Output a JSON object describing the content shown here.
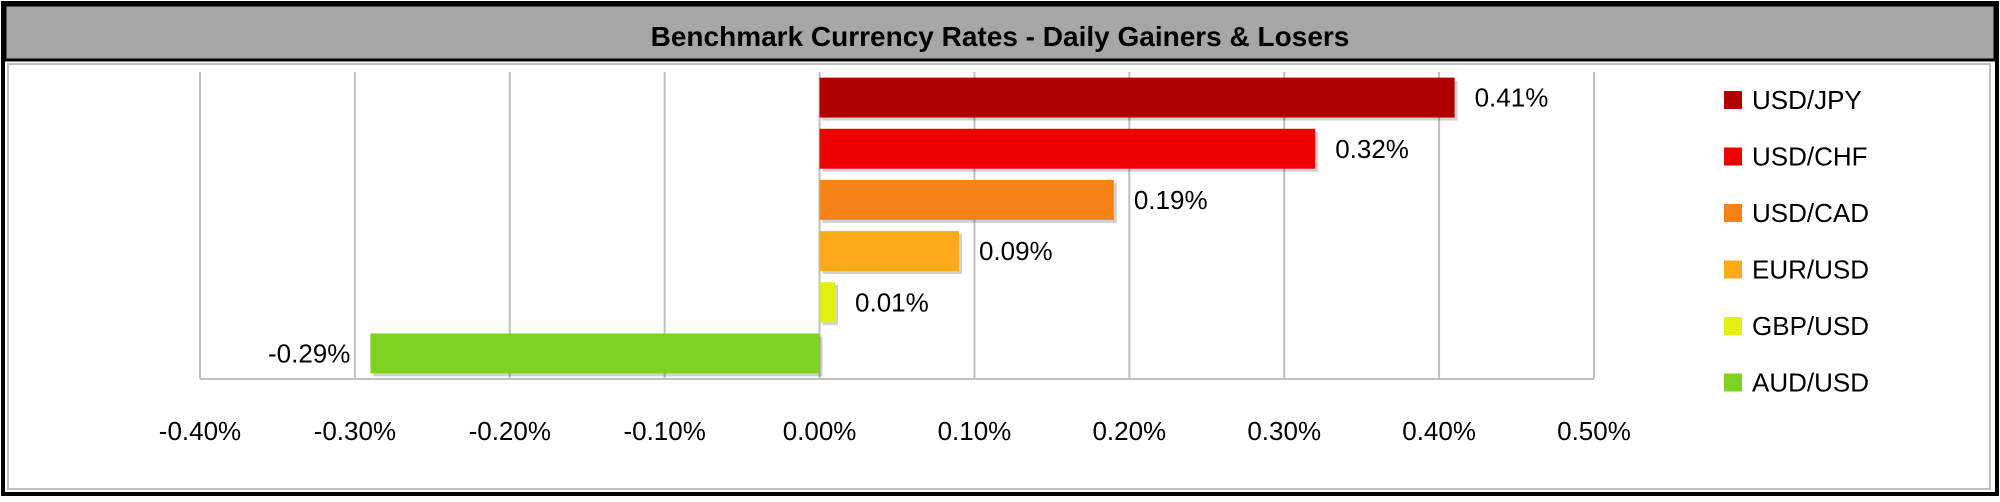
{
  "chart_data": {
    "type": "bar",
    "orientation": "horizontal",
    "title": "Benchmark Currency Rates - Daily Gainers & Losers",
    "categories": [
      "USD/JPY",
      "USD/CHF",
      "USD/CAD",
      "EUR/USD",
      "GBP/USD",
      "AUD/USD"
    ],
    "values": [
      0.41,
      0.32,
      0.19,
      0.09,
      0.01,
      -0.29
    ],
    "value_labels": [
      "0.41%",
      "0.32%",
      "0.19%",
      "0.09%",
      "0.01%",
      "-0.29%"
    ],
    "colors": [
      "#b20000",
      "#ee0000",
      "#f58214",
      "#fbaa17",
      "#e2ef10",
      "#7ed321"
    ],
    "xlim": [
      -0.4,
      0.5
    ],
    "xticks": [
      -0.4,
      -0.3,
      -0.2,
      -0.1,
      0.0,
      0.1,
      0.2,
      0.3,
      0.4,
      0.5
    ],
    "xtick_labels": [
      "-0.40%",
      "-0.30%",
      "-0.20%",
      "-0.10%",
      "0.00%",
      "0.10%",
      "0.20%",
      "0.30%",
      "0.40%",
      "0.50%"
    ],
    "xlabel": "",
    "ylabel": "",
    "grid": "vertical",
    "legend_position": "right",
    "legend": [
      "USD/JPY",
      "USD/CHF",
      "USD/CAD",
      "EUR/USD",
      "GBP/USD",
      "AUD/USD"
    ]
  }
}
